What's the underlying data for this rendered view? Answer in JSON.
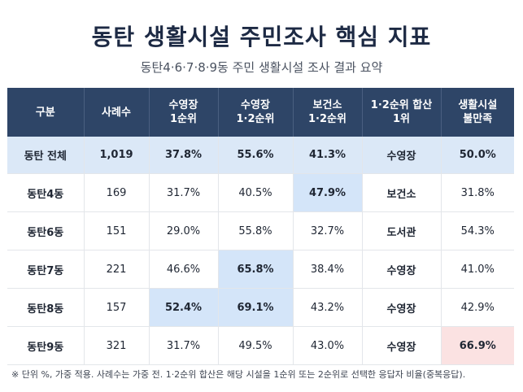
{
  "title": "동탄 생활시설 주민조사 핵심 지표",
  "subtitle": "동탄4·6·7·8·9동 주민 생활시설 조사 결과 요약",
  "table": {
    "headers": [
      [
        "구분"
      ],
      [
        "사례수"
      ],
      [
        "수영장",
        "1순위"
      ],
      [
        "수영장",
        "1·2순위"
      ],
      [
        "보건소",
        "1·2순위"
      ],
      [
        "1·2순위 합산",
        "1위"
      ],
      [
        "생활시설",
        "불만족"
      ]
    ],
    "summary": [
      "동탄 전체",
      "1,019",
      "37.8%",
      "55.6%",
      "41.3%",
      "수영장",
      "50.0%"
    ],
    "rows": [
      [
        "동탄4동",
        "169",
        "31.7%",
        "40.5%",
        "47.9%",
        "보건소",
        "31.8%"
      ],
      [
        "동탄6동",
        "151",
        "29.0%",
        "55.8%",
        "32.7%",
        "도서관",
        "54.3%"
      ],
      [
        "동탄7동",
        "221",
        "46.6%",
        "65.8%",
        "38.4%",
        "수영장",
        "41.0%"
      ],
      [
        "동탄8동",
        "157",
        "52.4%",
        "69.1%",
        "43.2%",
        "수영장",
        "42.9%"
      ],
      [
        "동탄9동",
        "321",
        "31.7%",
        "49.5%",
        "43.0%",
        "수영장",
        "66.9%"
      ]
    ]
  },
  "highlight_colors": {
    "blue": "#d4e5f9",
    "pink": "#fbe2e2",
    "header": "#2e4567",
    "summary": "#dbe8f7"
  },
  "note": "※ 단위 %, 가중 적용. 사례수는 가중 전. 1·2순위 합산은 해당 시설을 1순위 또는 2순위로 선택한 응답자 비율(중복응답)."
}
